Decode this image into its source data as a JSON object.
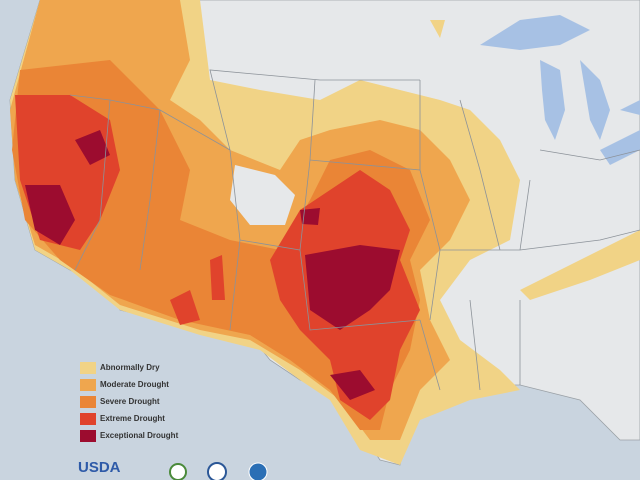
{
  "legend": {
    "items": [
      {
        "label": "Abnormally Dry",
        "color": "#f1d386"
      },
      {
        "label": "Moderate Drought",
        "color": "#efa64e"
      },
      {
        "label": "Severe Drought",
        "color": "#ea8536"
      },
      {
        "label": "Extreme Drought",
        "color": "#e0432c"
      },
      {
        "label": "Exceptional Drought",
        "color": "#9c0c2f"
      }
    ]
  },
  "logos": {
    "usda": "USDA"
  }
}
